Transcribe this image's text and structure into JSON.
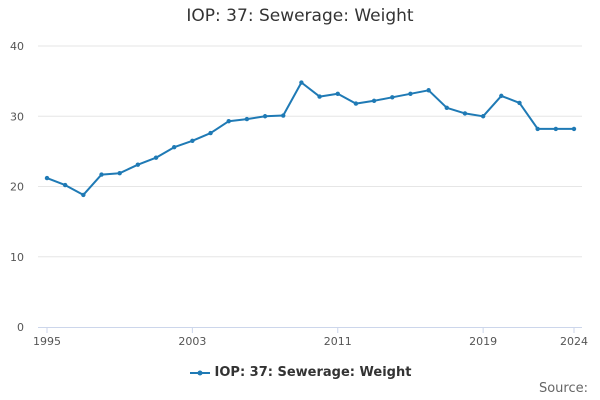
{
  "chart_data": {
    "type": "line",
    "title": "IOP: 37: Sewerage: Weight",
    "xlabel": "",
    "ylabel": "",
    "x": [
      1995,
      1996,
      1997,
      1998,
      1999,
      2000,
      2001,
      2002,
      2003,
      2004,
      2005,
      2006,
      2007,
      2008,
      2009,
      2010,
      2011,
      2012,
      2013,
      2014,
      2015,
      2016,
      2017,
      2018,
      2019,
      2020,
      2021,
      2022,
      2023,
      2024
    ],
    "x_ticks": [
      "1995",
      "2003",
      "2011",
      "2019",
      "2024"
    ],
    "x_tick_values": [
      1995,
      2003,
      2011,
      2019,
      2024
    ],
    "y_ticks": [
      "0",
      "10",
      "20",
      "30",
      "40"
    ],
    "ylim": [
      0,
      40
    ],
    "grid": true,
    "legend_position": "bottom",
    "series": [
      {
        "name": "IOP: 37: Sewerage: Weight",
        "color": "#1f7ab5",
        "values": [
          21.2,
          20.2,
          18.8,
          21.7,
          21.9,
          23.1,
          24.1,
          25.6,
          26.5,
          27.6,
          29.3,
          29.6,
          30.0,
          30.1,
          34.8,
          32.8,
          33.2,
          31.8,
          32.2,
          32.7,
          33.2,
          33.7,
          31.2,
          30.4,
          30.0,
          32.9,
          31.9,
          28.2,
          28.2,
          28.2
        ]
      }
    ]
  },
  "footer": {
    "source_label": "Source:"
  }
}
